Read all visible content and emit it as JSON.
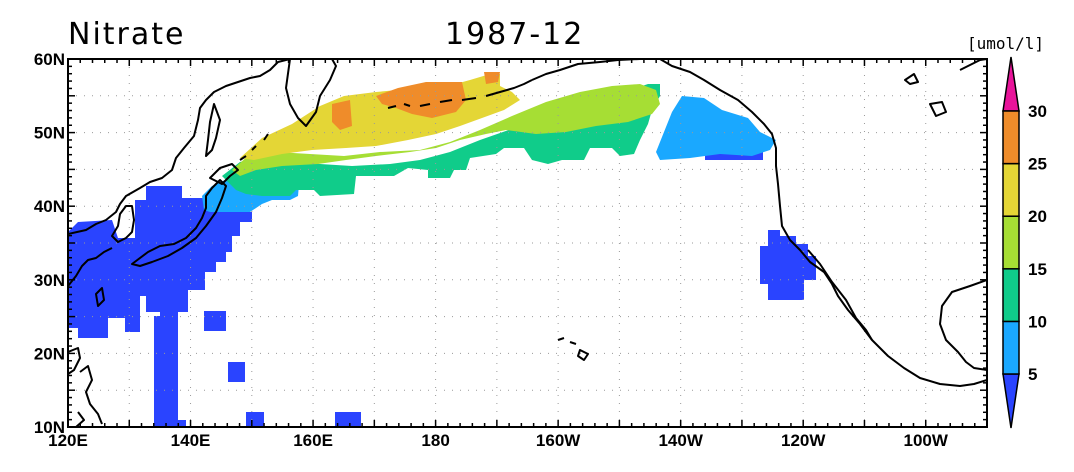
{
  "map": {
    "variable": "Nitrate",
    "date": "1987-12",
    "units": "[umol/l]",
    "lon_labels": [
      "120E",
      "140E",
      "160E",
      "180",
      "160W",
      "140W",
      "120W",
      "100W"
    ],
    "lon_values": [
      120,
      140,
      160,
      180,
      200,
      220,
      240,
      260
    ],
    "lat_labels": [
      "60N",
      "50N",
      "40N",
      "30N",
      "20N",
      "10N"
    ],
    "lat_values": [
      60,
      50,
      40,
      30,
      20,
      10
    ],
    "lon_range": [
      120,
      270
    ],
    "lat_range": [
      10,
      60
    ],
    "grid": true
  },
  "colorbar": {
    "levels": [
      "5",
      "10",
      "15",
      "20",
      "25",
      "30"
    ],
    "colors": [
      "#2a44ff",
      "#1aa8ff",
      "#10cc8a",
      "#a6de34",
      "#e4d636",
      "#ef8c2a",
      "#e8149a"
    ]
  }
}
